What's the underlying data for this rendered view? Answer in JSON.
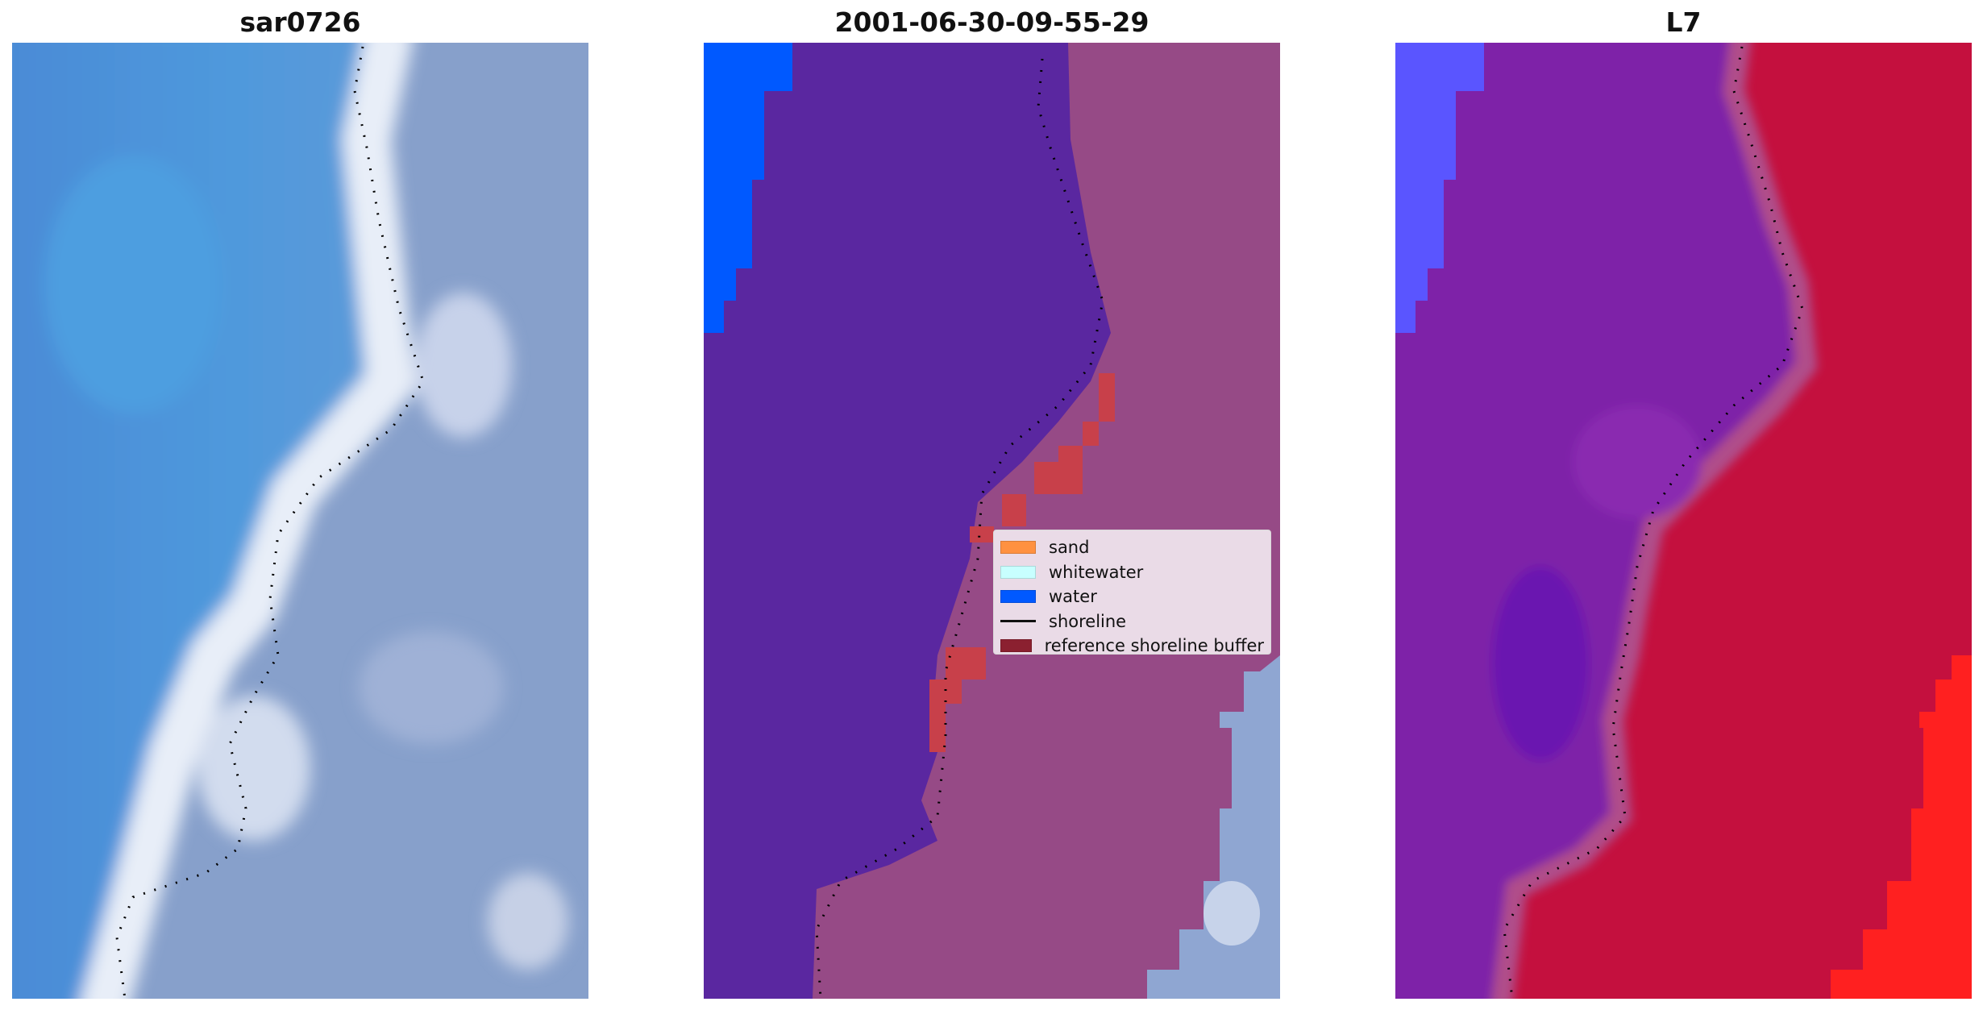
{
  "panels": [
    {
      "title": "sar0726",
      "kind": "rgb-image"
    },
    {
      "title": "2001-06-30-09-55-29",
      "kind": "classified-image"
    },
    {
      "title": "L7",
      "kind": "index-image"
    }
  ],
  "legend": {
    "placement": "center-right of middle panel",
    "items": [
      {
        "label": "sand",
        "color": "#ff9140",
        "type": "patch"
      },
      {
        "label": "whitewater",
        "color": "#c8ffff",
        "type": "patch"
      },
      {
        "label": "water",
        "color": "#0059ff",
        "type": "patch"
      },
      {
        "label": "shoreline",
        "color": "#000000",
        "type": "line"
      },
      {
        "label": "reference shoreline buffer",
        "color": "#8b2030",
        "type": "patch"
      }
    ]
  },
  "colors": {
    "ocean_rgb": "#4f8fd8",
    "surf_rgb": "#e4eaf5",
    "land_rgb": "#8aa2cc",
    "class_water_mask": "#5a27a0",
    "class_land_mask": "#964a86",
    "class_water": "#0059ff",
    "buffer": "#c8404a",
    "index_water": "#7e23a8",
    "index_land": "#c4103e",
    "index_high": "#ff2020",
    "index_low": "#5a55ff"
  }
}
